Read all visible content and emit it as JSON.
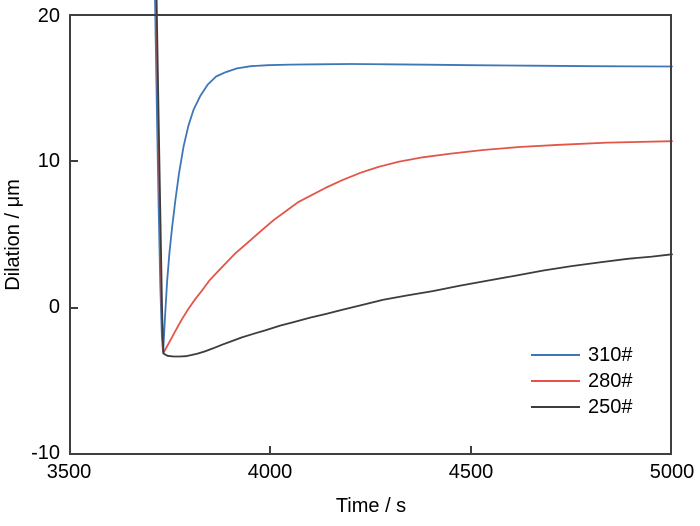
{
  "chart_data": {
    "type": "line",
    "title": "",
    "xlabel": "Time / s",
    "ylabel": "Dilation / μm",
    "xlim": [
      3500,
      5000
    ],
    "ylim": [
      -10,
      20
    ],
    "x_ticks": [
      3500,
      4000,
      4500,
      5000
    ],
    "y_ticks": [
      -10,
      0,
      10,
      20
    ],
    "x_tick_labels": [
      "3500",
      "4000",
      "4500",
      "5000"
    ],
    "y_tick_labels_top_to_bottom": [
      "20",
      "10",
      "0",
      "-10"
    ],
    "grid": false,
    "legend_position": "lower right",
    "axis_color": "#3f3f3f",
    "series": [
      {
        "name": "310#",
        "color": "#3f76b8",
        "points": [
          [
            3714,
            21
          ],
          [
            3719,
            13
          ],
          [
            3723,
            7
          ],
          [
            3727,
            1.5
          ],
          [
            3731,
            -2
          ],
          [
            3734,
            -3.05
          ],
          [
            3739,
            -0.5
          ],
          [
            3744,
            1.8
          ],
          [
            3750,
            3.8
          ],
          [
            3757,
            5.6
          ],
          [
            3765,
            7.4
          ],
          [
            3774,
            9.2
          ],
          [
            3785,
            11.0
          ],
          [
            3797,
            12.4
          ],
          [
            3810,
            13.5
          ],
          [
            3826,
            14.4
          ],
          [
            3845,
            15.2
          ],
          [
            3866,
            15.75
          ],
          [
            3890,
            16.05
          ],
          [
            3918,
            16.3
          ],
          [
            3952,
            16.45
          ],
          [
            3995,
            16.52
          ],
          [
            4050,
            16.56
          ],
          [
            4120,
            16.58
          ],
          [
            4200,
            16.6
          ],
          [
            4290,
            16.58
          ],
          [
            4390,
            16.55
          ],
          [
            4500,
            16.52
          ],
          [
            4650,
            16.48
          ],
          [
            4800,
            16.45
          ],
          [
            5000,
            16.43
          ]
        ]
      },
      {
        "name": "280#",
        "color": "#e25548",
        "points": [
          [
            3717,
            21
          ],
          [
            3722,
            13
          ],
          [
            3726,
            6.5
          ],
          [
            3730,
            0.5
          ],
          [
            3733,
            -2.5
          ],
          [
            3735,
            -3.05
          ],
          [
            3748,
            -2.4
          ],
          [
            3764,
            -1.6
          ],
          [
            3780,
            -0.8
          ],
          [
            3796,
            -0.1
          ],
          [
            3814,
            0.6
          ],
          [
            3831,
            1.2
          ],
          [
            3850,
            1.9
          ],
          [
            3871,
            2.5
          ],
          [
            3892,
            3.1
          ],
          [
            3913,
            3.7
          ],
          [
            3934,
            4.2
          ],
          [
            3955,
            4.7
          ],
          [
            3980,
            5.3
          ],
          [
            4010,
            6.0
          ],
          [
            4040,
            6.6
          ],
          [
            4070,
            7.2
          ],
          [
            4105,
            7.7
          ],
          [
            4140,
            8.2
          ],
          [
            4180,
            8.7
          ],
          [
            4225,
            9.2
          ],
          [
            4270,
            9.6
          ],
          [
            4320,
            9.95
          ],
          [
            4380,
            10.25
          ],
          [
            4450,
            10.5
          ],
          [
            4530,
            10.75
          ],
          [
            4620,
            10.95
          ],
          [
            4720,
            11.1
          ],
          [
            4840,
            11.25
          ],
          [
            5000,
            11.35
          ]
        ]
      },
      {
        "name": "250#",
        "color": "#3d3d3d",
        "points": [
          [
            3718,
            21
          ],
          [
            3723,
            13
          ],
          [
            3727,
            6.5
          ],
          [
            3731,
            0.5
          ],
          [
            3733,
            -2
          ],
          [
            3735,
            -3.1
          ],
          [
            3745,
            -3.25
          ],
          [
            3760,
            -3.3
          ],
          [
            3775,
            -3.3
          ],
          [
            3790,
            -3.28
          ],
          [
            3805,
            -3.2
          ],
          [
            3820,
            -3.1
          ],
          [
            3838,
            -2.95
          ],
          [
            3858,
            -2.75
          ],
          [
            3880,
            -2.5
          ],
          [
            3905,
            -2.25
          ],
          [
            3930,
            -2.0
          ],
          [
            3960,
            -1.75
          ],
          [
            3990,
            -1.5
          ],
          [
            4025,
            -1.2
          ],
          [
            4060,
            -0.95
          ],
          [
            4100,
            -0.65
          ],
          [
            4140,
            -0.4
          ],
          [
            4180,
            -0.12
          ],
          [
            4225,
            0.18
          ],
          [
            4280,
            0.55
          ],
          [
            4340,
            0.85
          ],
          [
            4405,
            1.15
          ],
          [
            4470,
            1.5
          ],
          [
            4540,
            1.85
          ],
          [
            4610,
            2.2
          ],
          [
            4680,
            2.55
          ],
          [
            4750,
            2.85
          ],
          [
            4820,
            3.1
          ],
          [
            4890,
            3.35
          ],
          [
            4950,
            3.5
          ],
          [
            5000,
            3.65
          ]
        ]
      }
    ]
  }
}
